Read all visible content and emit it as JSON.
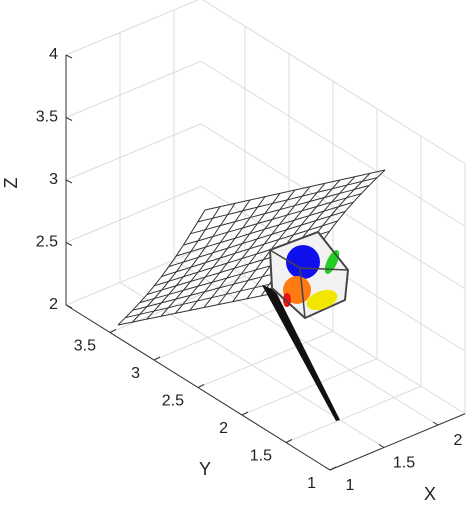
{
  "chart_data": {
    "type": "surface3d",
    "xlabel": "X",
    "ylabel": "Y",
    "zlabel": "Z",
    "xlim": [
      1,
      2.25
    ],
    "ylim": [
      1,
      4
    ],
    "zlim": [
      2,
      4
    ],
    "xticks": [
      1,
      1.5,
      2
    ],
    "yticks": [
      1,
      1.5,
      2,
      2.5,
      3,
      3.5
    ],
    "zticks": [
      2,
      2.5,
      3,
      3.5,
      4
    ],
    "grid": true
  }
}
